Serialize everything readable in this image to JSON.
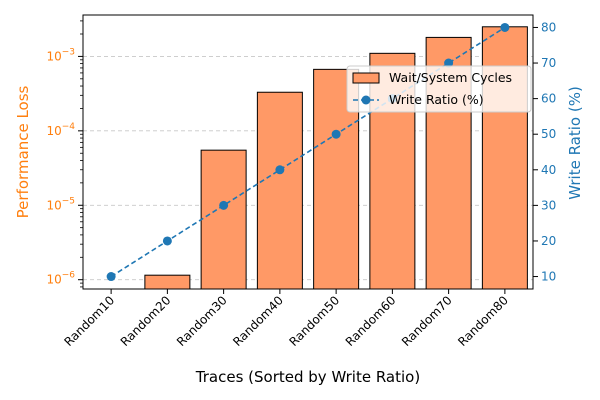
{
  "chart_data": {
    "type": "bar",
    "categories": [
      "Random10",
      "Random20",
      "Random30",
      "Random40",
      "Random50",
      "Random60",
      "Random70",
      "Random80"
    ],
    "xlabel": "Traces (Sorted by Write Ratio)",
    "ylabel_left": "Performance Loss",
    "ylabel_right": "Write Ratio (%)",
    "left_axis": {
      "scale": "log",
      "ylim": [
        7.5e-07,
        0.0036
      ],
      "ticks": [
        {
          "value": 1e-06,
          "base": "10",
          "exp": "−6"
        },
        {
          "value": 1e-05,
          "base": "10",
          "exp": "−5"
        },
        {
          "value": 0.0001,
          "base": "10",
          "exp": "−4"
        },
        {
          "value": 0.001,
          "base": "10",
          "exp": "−3"
        }
      ]
    },
    "right_axis": {
      "scale": "linear",
      "ylim": [
        6.5,
        83.5
      ],
      "ticks": [
        10,
        20,
        30,
        40,
        50,
        60,
        70,
        80
      ]
    },
    "series": [
      {
        "name": "Wait/System Cycles",
        "kind": "bar",
        "axis": "left",
        "color": "#ff9966",
        "values": [
          null,
          1.15e-06,
          5.5e-05,
          0.00033,
          0.00067,
          0.0011,
          0.0018,
          0.0025
        ]
      },
      {
        "name": "Write Ratio (%)",
        "kind": "line",
        "axis": "right",
        "color": "#1f77b4",
        "values": [
          10,
          20,
          30,
          40,
          50,
          60,
          70,
          80
        ]
      }
    ],
    "grid": "horizontal-dashed",
    "legend": "upper-right",
    "colors": {
      "left_axis": "#ff7f0e",
      "right_axis": "#1f77b4",
      "grid": "#c8c8c8"
    }
  }
}
